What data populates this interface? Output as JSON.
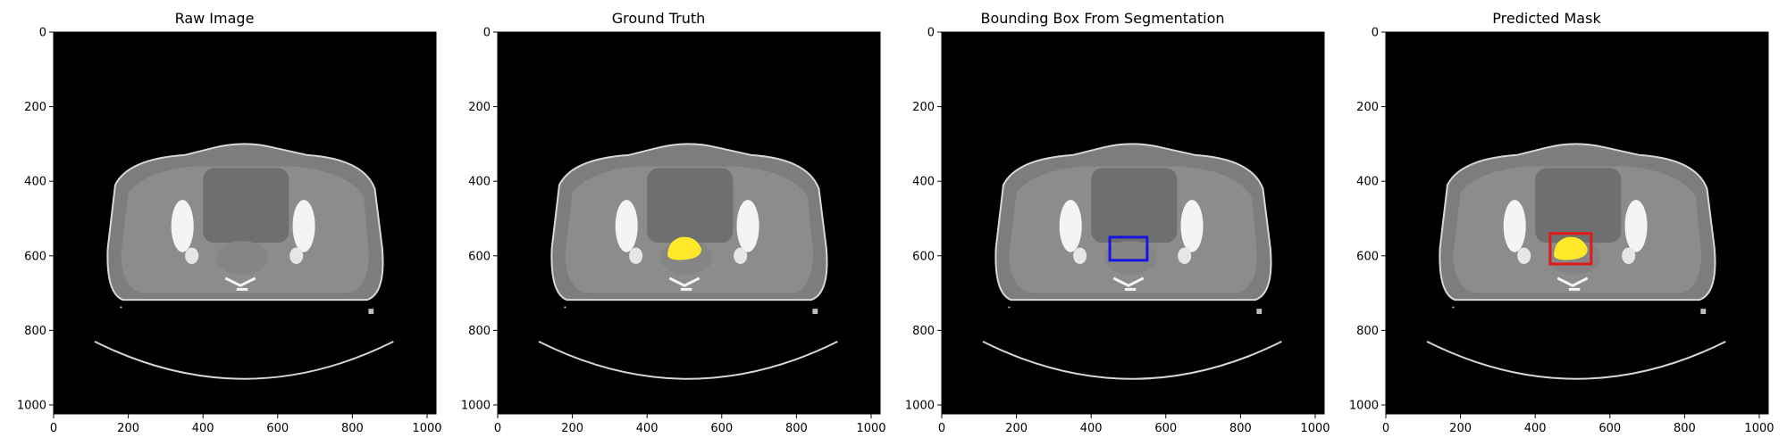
{
  "panels": [
    {
      "title": "Raw Image",
      "overlay": "none"
    },
    {
      "title": "Ground Truth",
      "overlay": "mask"
    },
    {
      "title": "Bounding Box From Segmentation",
      "overlay": "bbox"
    },
    {
      "title": "Predicted Mask",
      "overlay": "mask+bbox"
    }
  ],
  "axes": {
    "x_ticks": [
      "0",
      "200",
      "400",
      "600",
      "800",
      "1000"
    ],
    "y_ticks": [
      "0",
      "200",
      "400",
      "600",
      "800",
      "1000"
    ],
    "xlim": [
      0,
      1024
    ],
    "ylim": [
      1024,
      0
    ]
  },
  "colors": {
    "mask": "#ffe92a",
    "gt_bbox": "#1515e0",
    "pred_bbox": "#e01a1a",
    "background": "#000000"
  }
}
